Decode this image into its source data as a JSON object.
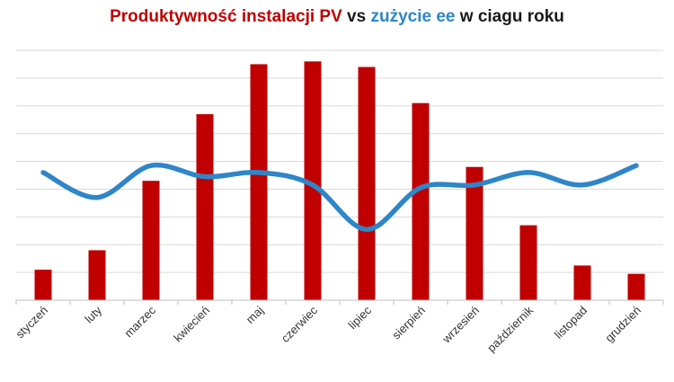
{
  "title": {
    "part1": "Produktywność instalacji PV",
    "part2": " vs ",
    "part3": "zużycie ee",
    "part4": " w ciagu roku"
  },
  "colors": {
    "production": "#c00000",
    "consumption": "#2e86c8",
    "title_neutral": "#1a1a1a",
    "grid": "#d9d9d9"
  },
  "chart_data": {
    "type": "bar",
    "title": "Produktywność instalacji PV vs zużycie ee w ciagu roku",
    "categories": [
      "styczeń",
      "luty",
      "marzec",
      "kwiecień",
      "maj",
      "czerwiec",
      "lipiec",
      "sierpień",
      "wrzesień",
      "październik",
      "listopad",
      "grudzień"
    ],
    "series": [
      {
        "type": "bar",
        "values": [
          1.1,
          1.8,
          4.3,
          6.7,
          8.5,
          8.6,
          8.4,
          7.1,
          4.8,
          2.7,
          1.25,
          0.95
        ]
      },
      {
        "type": "line",
        "values": [
          4.6,
          3.7,
          4.85,
          4.45,
          4.6,
          4.15,
          2.55,
          4.05,
          4.15,
          4.6,
          4.15,
          4.85
        ]
      }
    ],
    "xlabel": "",
    "ylabel": "",
    "ylim": [
      0,
      9
    ],
    "grid": true,
    "legend": "none"
  }
}
